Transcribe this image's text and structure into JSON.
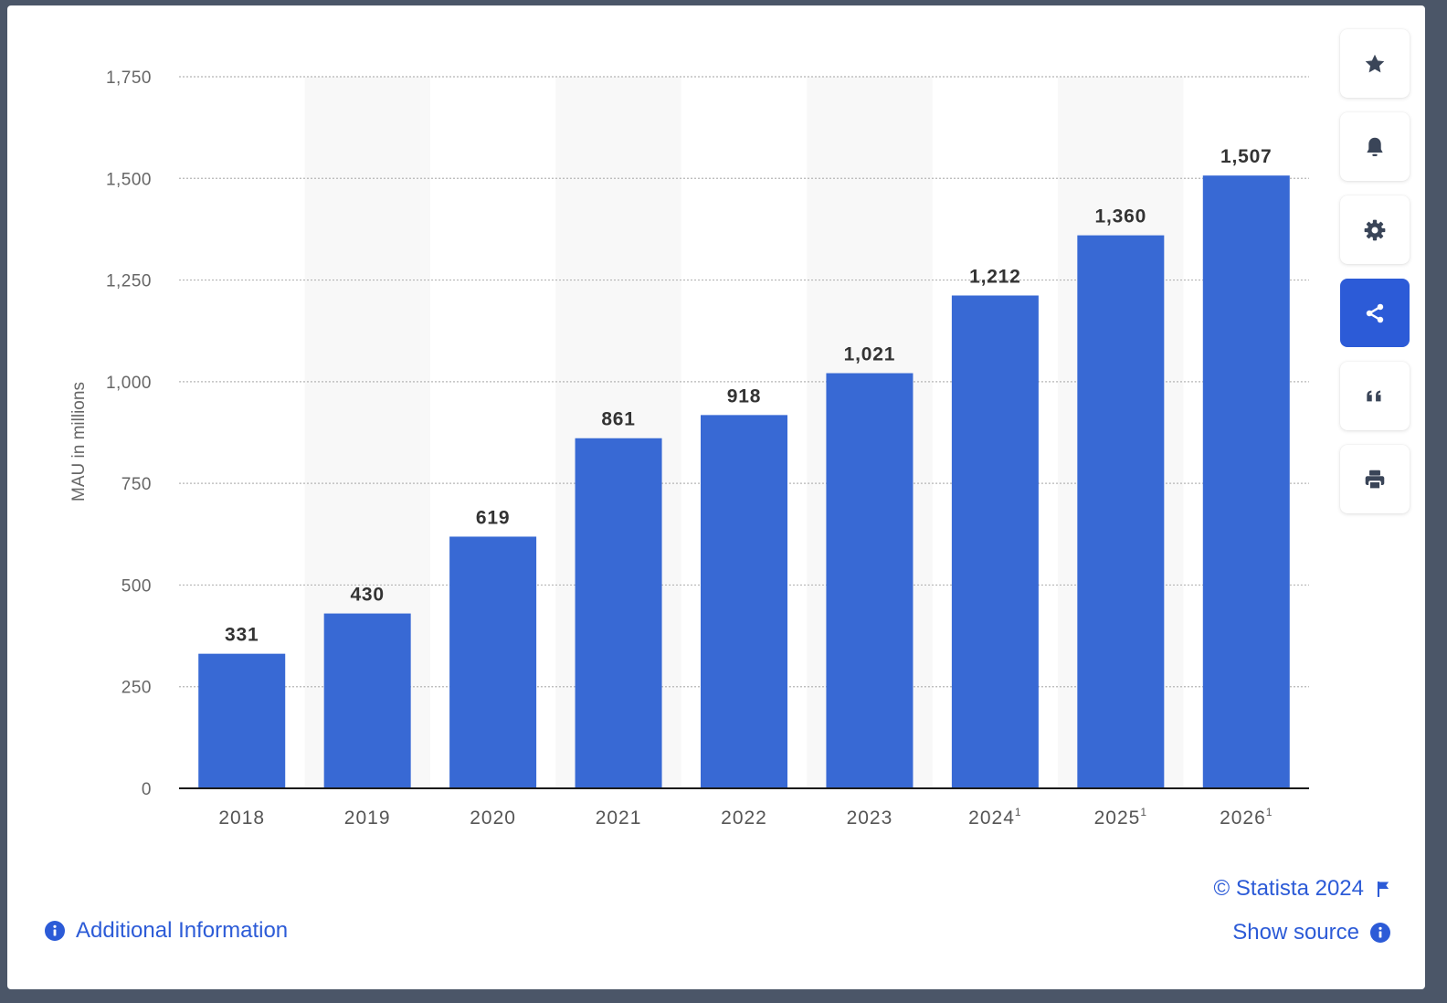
{
  "chart_data": {
    "type": "bar",
    "categories": [
      "2018",
      "2019",
      "2020",
      "2021",
      "2022",
      "2023",
      "2024",
      "2025",
      "2026"
    ],
    "category_superscripts": [
      "",
      "",
      "",
      "",
      "",
      "",
      "1",
      "1",
      "1"
    ],
    "values": [
      331,
      430,
      619,
      861,
      918,
      1021,
      1212,
      1360,
      1507
    ],
    "value_labels": [
      "331",
      "430",
      "619",
      "861",
      "918",
      "1,021",
      "1,212",
      "1,360",
      "1,507"
    ],
    "ylabel": "MAU in millions",
    "ylim": [
      0,
      1750
    ],
    "yticks": [
      0,
      250,
      500,
      750,
      1000,
      1250,
      1500,
      1750
    ],
    "ytick_labels": [
      "0",
      "250",
      "500",
      "750",
      "1,000",
      "1,250",
      "1,500",
      "1,750"
    ],
    "grid": true,
    "bar_color": "#3869d4",
    "alternate_band_color": "#f8f8f8"
  },
  "toolbar": {
    "buttons": [
      {
        "name": "favorite",
        "icon": "star-icon",
        "active": false
      },
      {
        "name": "notification",
        "icon": "bell-icon",
        "active": false
      },
      {
        "name": "settings",
        "icon": "gear-icon",
        "active": false
      },
      {
        "name": "share",
        "icon": "share-icon",
        "active": true
      },
      {
        "name": "cite",
        "icon": "quote-icon",
        "active": false
      },
      {
        "name": "print",
        "icon": "printer-icon",
        "active": false
      }
    ]
  },
  "footer": {
    "copyright": "© Statista 2024",
    "show_source": "Show source",
    "additional_info": "Additional Information"
  },
  "colors": {
    "accent": "#2c5bd7",
    "icon": "#3a4558",
    "axis_text": "#666666",
    "label_text": "#333333"
  }
}
